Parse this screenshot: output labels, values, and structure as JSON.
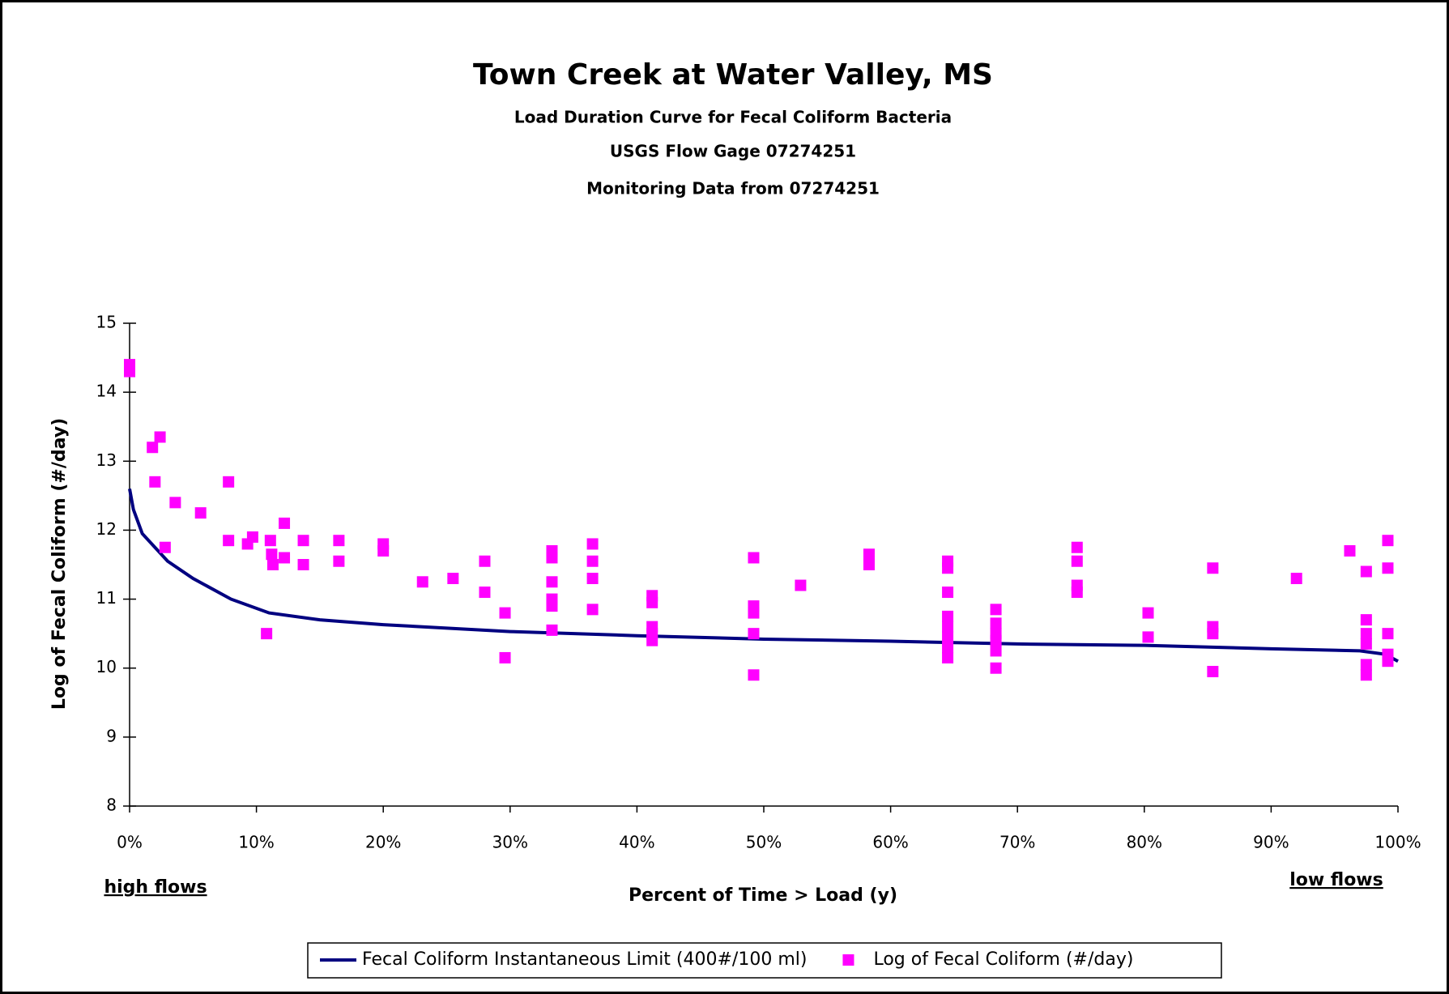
{
  "chart_data": {
    "type": "scatter",
    "title": "Town Creek at Water Valley, MS",
    "subtitles": [
      "Load Duration Curve for Fecal Coliform Bacteria",
      "USGS Flow Gage 07274251",
      "Monitoring Data from 07274251"
    ],
    "x_label": "Percent of Time > Load (y)",
    "y_label": "Log of Fecal Coliform (#/day)",
    "annotations": [
      "high flows",
      "low flows"
    ],
    "xlim": [
      0,
      100
    ],
    "ylim": [
      8,
      15
    ],
    "xticks": [
      {
        "value": 0,
        "label": "0%"
      },
      {
        "value": 10,
        "label": "10%"
      },
      {
        "value": 20,
        "label": "20%"
      },
      {
        "value": 30,
        "label": "30%"
      },
      {
        "value": 40,
        "label": "40%"
      },
      {
        "value": 50,
        "label": "50%"
      },
      {
        "value": 60,
        "label": "60%"
      },
      {
        "value": 70,
        "label": "70%"
      },
      {
        "value": 80,
        "label": "80%"
      },
      {
        "value": 90,
        "label": "90%"
      },
      {
        "value": 100,
        "label": "100%"
      }
    ],
    "yticks": [
      8,
      9,
      10,
      11,
      12,
      13,
      14,
      15
    ],
    "legend": "bottom",
    "series": [
      {
        "name": "Fecal Coliform Instantaneous Limit (400#/100 ml)",
        "type": "line",
        "color": "#000080",
        "x": [
          0,
          0.3,
          1,
          3,
          5,
          8,
          11,
          15,
          20,
          30,
          40,
          50,
          60,
          70,
          80,
          90,
          97,
          99,
          100
        ],
        "values": [
          12.6,
          12.3,
          11.95,
          11.55,
          11.3,
          11.0,
          10.8,
          10.7,
          10.63,
          10.53,
          10.47,
          10.42,
          10.39,
          10.35,
          10.33,
          10.28,
          10.25,
          10.2,
          10.1
        ]
      },
      {
        "name": "Log of Fecal Coliform (#/day)",
        "type": "scatter",
        "color": "#ff00ff",
        "x": [
          0,
          0,
          1.8,
          2.4,
          2.0,
          2.8,
          3.6,
          5.6,
          7.8,
          7.8,
          9.3,
          9.7,
          10.8,
          11.1,
          11.2,
          11.3,
          12.2,
          12.2,
          13.7,
          13.7,
          16.5,
          16.5,
          20.0,
          20.0,
          23.1,
          25.5,
          28.0,
          28.0,
          29.6,
          29.6,
          33.3,
          33.3,
          33.3,
          33.3,
          33.3,
          33.3,
          36.5,
          36.5,
          36.5,
          36.5,
          41.2,
          41.2,
          41.2,
          41.2,
          41.2,
          49.2,
          49.2,
          49.2,
          49.2,
          49.2,
          52.9,
          58.3,
          58.3,
          64.5,
          64.5,
          64.5,
          64.5,
          64.5,
          64.5,
          64.5,
          64.5,
          68.3,
          68.3,
          68.3,
          68.3,
          68.3,
          68.3,
          74.7,
          74.7,
          74.7,
          74.7,
          80.3,
          80.3,
          85.4,
          85.4,
          85.4,
          85.4,
          92.0,
          96.2,
          97.5,
          97.5,
          97.5,
          97.5,
          97.5,
          97.5,
          99.2,
          99.2,
          99.2,
          99.2,
          99.2
        ],
        "values": [
          14.4,
          14.3,
          13.2,
          13.35,
          12.7,
          11.75,
          12.4,
          12.25,
          12.7,
          11.85,
          11.8,
          11.9,
          10.5,
          11.85,
          11.65,
          11.5,
          12.1,
          11.6,
          11.85,
          11.5,
          11.85,
          11.55,
          11.8,
          11.7,
          11.25,
          11.3,
          11.55,
          11.1,
          10.8,
          10.15,
          11.7,
          11.6,
          11.25,
          11.0,
          10.9,
          10.55,
          11.8,
          11.55,
          11.3,
          10.85,
          11.05,
          10.95,
          10.6,
          10.5,
          10.4,
          11.6,
          10.9,
          10.8,
          10.5,
          9.9,
          11.2,
          11.65,
          11.5,
          11.55,
          11.45,
          11.1,
          10.75,
          10.6,
          10.45,
          10.3,
          10.15,
          10.85,
          10.65,
          10.5,
          10.4,
          10.25,
          10.0,
          11.75,
          11.55,
          11.2,
          11.1,
          10.8,
          10.45,
          11.45,
          10.6,
          10.5,
          9.95,
          11.3,
          11.7,
          11.4,
          10.7,
          10.5,
          10.35,
          10.05,
          9.9,
          11.85,
          11.45,
          10.5,
          10.2,
          10.1
        ]
      }
    ]
  }
}
